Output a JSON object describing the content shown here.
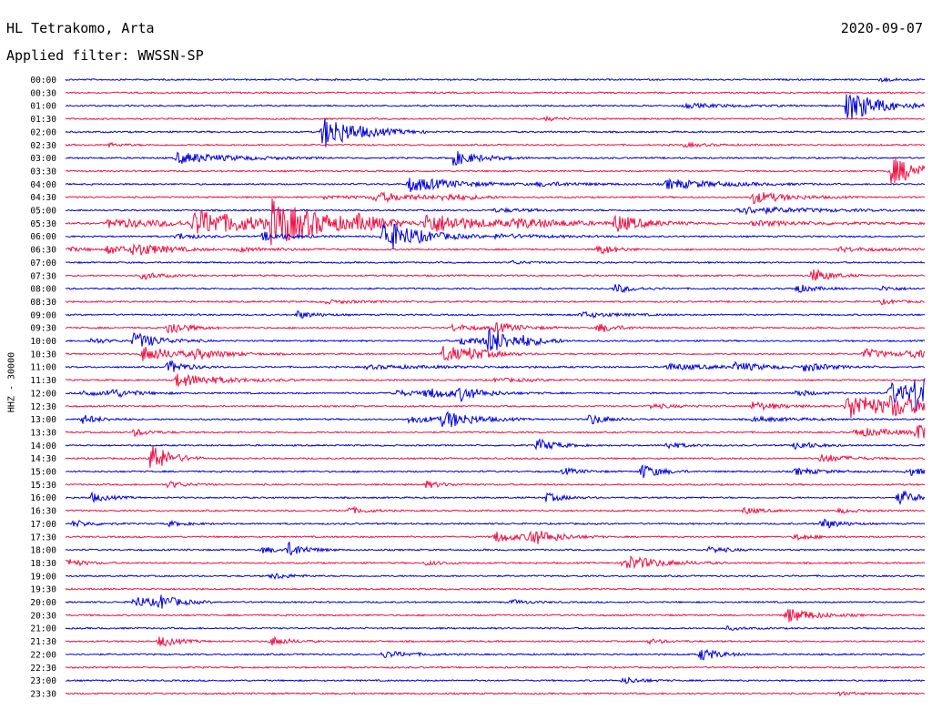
{
  "header": {
    "station": "HL Tetrakomo, Arta",
    "date": "2020-09-07",
    "filter": "Applied filter: WWSSN-SP"
  },
  "colors": {
    "even_row": "#0000dd",
    "odd_row": "#ee1144"
  },
  "chart_data": {
    "type": "line",
    "title": "HL Tetrakomo, Arta",
    "subtitle": "Applied filter: WWSSN-SP",
    "ylabel": "HHZ - 30000",
    "traces": [
      {
        "label": "00:00",
        "bursts": [
          [
            0.95,
            0.3,
            0.02
          ]
        ]
      },
      {
        "label": "00:30",
        "bursts": []
      },
      {
        "label": "01:00",
        "bursts": [
          [
            0.91,
            3.0,
            0.035
          ],
          [
            0.72,
            0.4,
            0.05
          ]
        ]
      },
      {
        "label": "01:30",
        "bursts": [
          [
            0.56,
            0.3,
            0.02
          ]
        ]
      },
      {
        "label": "02:00",
        "bursts": [
          [
            0.3,
            3.0,
            0.04
          ]
        ]
      },
      {
        "label": "02:30",
        "bursts": [
          [
            0.05,
            0.3,
            0.02
          ],
          [
            0.72,
            0.3,
            0.03
          ]
        ]
      },
      {
        "label": "03:00",
        "bursts": [
          [
            0.13,
            1.0,
            0.06
          ],
          [
            0.45,
            1.4,
            0.03
          ]
        ]
      },
      {
        "label": "03:30",
        "bursts": [
          [
            0.96,
            2.5,
            0.04
          ]
        ]
      },
      {
        "label": "04:00",
        "bursts": [
          [
            0.4,
            1.4,
            0.05
          ],
          [
            0.7,
            0.9,
            0.06
          ],
          [
            0.55,
            0.4,
            0.05
          ]
        ]
      },
      {
        "label": "04:30",
        "bursts": [
          [
            0.36,
            0.8,
            0.05
          ],
          [
            0.44,
            0.6,
            0.03
          ],
          [
            0.8,
            1.1,
            0.04
          ],
          [
            0.3,
            0.3,
            0.05
          ]
        ]
      },
      {
        "label": "05:00",
        "bursts": [
          [
            0.78,
            0.7,
            0.08
          ],
          [
            0.5,
            0.3,
            0.05
          ]
        ]
      },
      {
        "label": "05:30",
        "bursts": [
          [
            0.05,
            0.8,
            0.1
          ],
          [
            0.15,
            2.2,
            0.08
          ],
          [
            0.24,
            3.6,
            0.06
          ],
          [
            0.34,
            0.8,
            0.03
          ],
          [
            0.42,
            2.0,
            0.06
          ],
          [
            0.52,
            0.6,
            0.1
          ],
          [
            0.64,
            1.5,
            0.03
          ],
          [
            0.8,
            0.4,
            0.1
          ]
        ]
      },
      {
        "label": "06:00",
        "bursts": [
          [
            0.13,
            0.6,
            0.02
          ],
          [
            0.23,
            0.8,
            0.03
          ],
          [
            0.37,
            3.0,
            0.04
          ],
          [
            0.5,
            0.4,
            0.06
          ]
        ]
      },
      {
        "label": "06:30",
        "bursts": [
          [
            0.0,
            0.5,
            0.02
          ],
          [
            0.05,
            0.8,
            0.03
          ],
          [
            0.08,
            1.0,
            0.04
          ],
          [
            0.2,
            0.4,
            0.05
          ],
          [
            0.62,
            1.0,
            0.02
          ],
          [
            0.9,
            0.4,
            0.05
          ]
        ]
      },
      {
        "label": "07:00",
        "bursts": [
          [
            0.52,
            0.3,
            0.02
          ]
        ]
      },
      {
        "label": "07:30",
        "bursts": [
          [
            0.09,
            0.7,
            0.02
          ],
          [
            0.87,
            1.3,
            0.02
          ]
        ]
      },
      {
        "label": "08:00",
        "bursts": [
          [
            0.64,
            0.8,
            0.02
          ],
          [
            0.85,
            0.8,
            0.02
          ],
          [
            0.95,
            0.4,
            0.02
          ]
        ]
      },
      {
        "label": "08:30",
        "bursts": [
          [
            0.95,
            0.4,
            0.02
          ],
          [
            0.3,
            0.3,
            0.05
          ]
        ]
      },
      {
        "label": "09:00",
        "bursts": [
          [
            0.27,
            0.7,
            0.02
          ],
          [
            0.6,
            0.5,
            0.04
          ]
        ]
      },
      {
        "label": "09:30",
        "bursts": [
          [
            0.12,
            1.4,
            0.02
          ],
          [
            0.45,
            0.6,
            0.03
          ],
          [
            0.5,
            0.8,
            0.03
          ],
          [
            0.62,
            0.9,
            0.02
          ]
        ]
      },
      {
        "label": "10:00",
        "bursts": [
          [
            0.03,
            0.5,
            0.02
          ],
          [
            0.08,
            1.5,
            0.03
          ],
          [
            0.46,
            0.8,
            0.03
          ],
          [
            0.49,
            2.4,
            0.03
          ],
          [
            0.53,
            0.4,
            0.03
          ]
        ]
      },
      {
        "label": "10:30",
        "bursts": [
          [
            0.09,
            1.4,
            0.04
          ],
          [
            0.15,
            0.6,
            0.04
          ],
          [
            0.44,
            1.6,
            0.03
          ],
          [
            0.47,
            0.6,
            0.03
          ],
          [
            0.93,
            0.9,
            0.03
          ],
          [
            0.98,
            0.6,
            0.04
          ]
        ]
      },
      {
        "label": "11:00",
        "bursts": [
          [
            0.12,
            1.2,
            0.02
          ],
          [
            0.7,
            0.6,
            0.05
          ],
          [
            0.78,
            0.8,
            0.03
          ],
          [
            0.86,
            0.8,
            0.03
          ],
          [
            0.35,
            0.3,
            0.1
          ]
        ]
      },
      {
        "label": "11:30",
        "bursts": [
          [
            0.13,
            1.2,
            0.05
          ],
          [
            0.5,
            0.3,
            0.05
          ]
        ]
      },
      {
        "label": "12:00",
        "bursts": [
          [
            0.02,
            0.6,
            0.02
          ],
          [
            0.05,
            0.8,
            0.03
          ],
          [
            0.38,
            0.6,
            0.03
          ],
          [
            0.42,
            0.8,
            0.05
          ],
          [
            0.46,
            1.0,
            0.02
          ],
          [
            0.85,
            0.6,
            0.02
          ],
          [
            0.96,
            2.0,
            0.05
          ],
          [
            0.99,
            3.0,
            0.02
          ]
        ]
      },
      {
        "label": "12:30",
        "bursts": [
          [
            0.68,
            0.4,
            0.03
          ],
          [
            0.8,
            0.8,
            0.03
          ],
          [
            0.91,
            2.5,
            0.05
          ],
          [
            0.96,
            1.2,
            0.05
          ]
        ]
      },
      {
        "label": "13:00",
        "bursts": [
          [
            0.02,
            0.8,
            0.02
          ],
          [
            0.4,
            0.6,
            0.05
          ],
          [
            0.44,
            1.5,
            0.03
          ],
          [
            0.61,
            1.0,
            0.02
          ],
          [
            0.8,
            0.4,
            0.05
          ]
        ]
      },
      {
        "label": "13:30",
        "bursts": [
          [
            0.08,
            0.6,
            0.02
          ],
          [
            0.92,
            0.8,
            0.05
          ],
          [
            0.99,
            1.4,
            0.03
          ]
        ]
      },
      {
        "label": "14:00",
        "bursts": [
          [
            0.55,
            1.2,
            0.02
          ],
          [
            0.7,
            0.6,
            0.02
          ],
          [
            0.85,
            0.8,
            0.02
          ]
        ]
      },
      {
        "label": "14:30",
        "bursts": [
          [
            0.1,
            3.0,
            0.02
          ],
          [
            0.88,
            0.8,
            0.03
          ]
        ]
      },
      {
        "label": "15:00",
        "bursts": [
          [
            0.58,
            0.6,
            0.02
          ],
          [
            0.67,
            1.4,
            0.02
          ],
          [
            0.85,
            0.6,
            0.03
          ],
          [
            0.98,
            0.8,
            0.02
          ]
        ]
      },
      {
        "label": "15:30",
        "bursts": [
          [
            0.12,
            0.6,
            0.02
          ],
          [
            0.42,
            0.6,
            0.02
          ]
        ]
      },
      {
        "label": "16:00",
        "bursts": [
          [
            0.03,
            0.8,
            0.02
          ],
          [
            0.56,
            0.8,
            0.02
          ],
          [
            0.97,
            1.4,
            0.02
          ]
        ]
      },
      {
        "label": "16:30",
        "bursts": [
          [
            0.33,
            0.6,
            0.02
          ],
          [
            0.79,
            0.6,
            0.02
          ],
          [
            0.9,
            0.4,
            0.02
          ]
        ]
      },
      {
        "label": "17:00",
        "bursts": [
          [
            0.01,
            0.6,
            0.02
          ],
          [
            0.12,
            0.4,
            0.02
          ],
          [
            0.88,
            1.0,
            0.02
          ]
        ]
      },
      {
        "label": "17:30",
        "bursts": [
          [
            0.5,
            1.0,
            0.03
          ],
          [
            0.54,
            1.4,
            0.03
          ],
          [
            0.85,
            0.6,
            0.02
          ]
        ]
      },
      {
        "label": "18:00",
        "bursts": [
          [
            0.23,
            0.6,
            0.02
          ],
          [
            0.26,
            1.2,
            0.02
          ],
          [
            0.75,
            0.6,
            0.02
          ]
        ]
      },
      {
        "label": "18:30",
        "bursts": [
          [
            0.0,
            0.8,
            0.02
          ],
          [
            0.42,
            0.4,
            0.02
          ],
          [
            0.65,
            1.4,
            0.04
          ]
        ]
      },
      {
        "label": "19:00",
        "bursts": [
          [
            0.24,
            0.6,
            0.02
          ]
        ]
      },
      {
        "label": "19:30",
        "bursts": []
      },
      {
        "label": "20:00",
        "bursts": [
          [
            0.08,
            1.0,
            0.03
          ],
          [
            0.11,
            1.0,
            0.02
          ],
          [
            0.52,
            0.4,
            0.02
          ]
        ]
      },
      {
        "label": "20:30",
        "bursts": [
          [
            0.84,
            1.4,
            0.03
          ]
        ]
      },
      {
        "label": "21:00",
        "bursts": [
          [
            0.77,
            0.3,
            0.02
          ]
        ]
      },
      {
        "label": "21:30",
        "bursts": [
          [
            0.11,
            1.0,
            0.02
          ],
          [
            0.24,
            0.8,
            0.02
          ],
          [
            0.68,
            0.4,
            0.02
          ]
        ]
      },
      {
        "label": "22:00",
        "bursts": [
          [
            0.37,
            0.6,
            0.03
          ],
          [
            0.74,
            1.2,
            0.02
          ]
        ]
      },
      {
        "label": "22:30",
        "bursts": []
      },
      {
        "label": "23:00",
        "bursts": [
          [
            0.65,
            0.6,
            0.02
          ]
        ]
      },
      {
        "label": "23:30",
        "bursts": [
          [
            0.9,
            0.3,
            0.02
          ]
        ]
      }
    ]
  }
}
